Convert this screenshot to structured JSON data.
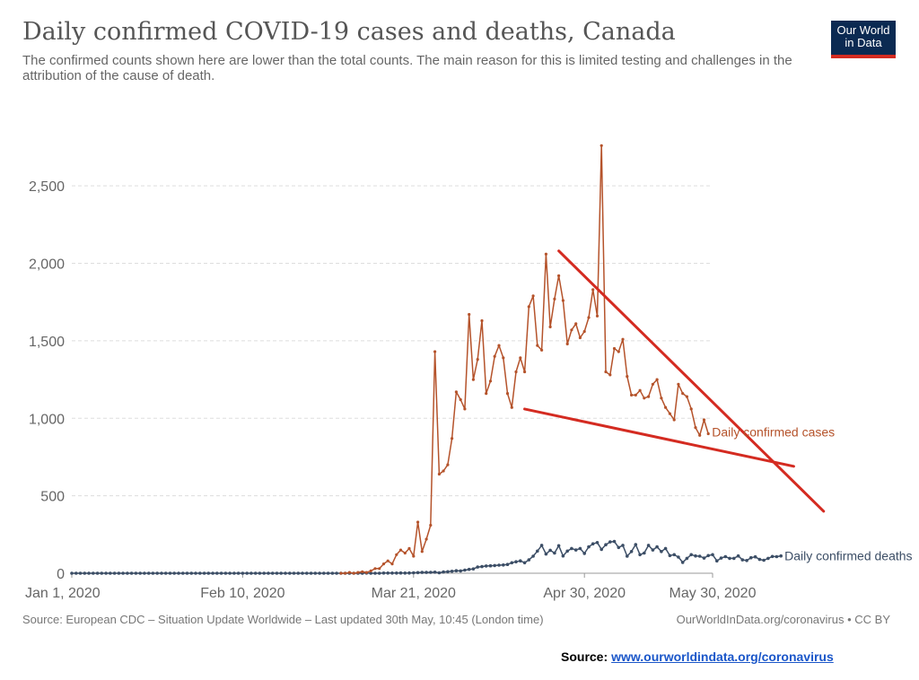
{
  "header": {
    "title": "Daily confirmed COVID-19 cases and deaths, Canada",
    "subtitle": "The confirmed counts shown here are lower than the total counts. The main reason for this is limited testing and challenges in the attribution of the cause of death.",
    "logo_line1": "Our World",
    "logo_line2": "in Data"
  },
  "footer": {
    "source_text": "Source: European CDC – Situation Update Worldwide – Last updated 30th May, 10:45 (London time)",
    "credit_text": "OurWorldInData.org/coronavirus • CC BY",
    "bottom_label": "Source:",
    "bottom_link": "www.ourworldindata.org/coronavirus"
  },
  "colors": {
    "cases": "#b5532b",
    "deaths": "#3c4e66",
    "trendlines": "#d42b21",
    "grid": "#dddddd",
    "axis_text": "#666666"
  },
  "chart_data": {
    "type": "line",
    "title": "Daily confirmed COVID-19 cases and deaths, Canada",
    "x_range": [
      "2020-01-01",
      "2020-05-30"
    ],
    "x_ticks": [
      {
        "date": "2020-01-01",
        "label": "Jan 1, 2020"
      },
      {
        "date": "2020-02-10",
        "label": "Feb 10, 2020"
      },
      {
        "date": "2020-03-21",
        "label": "Mar 21, 2020"
      },
      {
        "date": "2020-04-30",
        "label": "Apr 30, 2020"
      },
      {
        "date": "2020-05-30",
        "label": "May 30, 2020"
      }
    ],
    "y_range": [
      0,
      2750
    ],
    "y_ticks": [
      {
        "value": 0,
        "label": "0"
      },
      {
        "value": 500,
        "label": "500"
      },
      {
        "value": 1000,
        "label": "1,000"
      },
      {
        "value": 1500,
        "label": "1,500"
      },
      {
        "value": 2000,
        "label": "2,000"
      },
      {
        "value": 2500,
        "label": "2,500"
      }
    ],
    "grid": true,
    "series": [
      {
        "name": "Daily confirmed cases",
        "color": "#b5532b",
        "start_date": "2020-03-04",
        "values": [
          0,
          0,
          5,
          0,
          5,
          10,
          5,
          15,
          30,
          30,
          60,
          80,
          60,
          120,
          150,
          130,
          160,
          110,
          330,
          140,
          220,
          310,
          1430,
          640,
          660,
          700,
          870,
          1170,
          1120,
          1060,
          1670,
          1250,
          1380,
          1630,
          1160,
          1240,
          1400,
          1470,
          1390,
          1160,
          1070,
          1300,
          1390,
          1300,
          1720,
          1790,
          1470,
          1440,
          2060,
          1590,
          1770,
          1920,
          1760,
          1480,
          1570,
          1610,
          1520,
          1560,
          1650,
          1830,
          1660,
          2760,
          1300,
          1280,
          1450,
          1430,
          1510,
          1270,
          1150,
          1150,
          1180,
          1130,
          1140,
          1220,
          1250,
          1130,
          1070,
          1030,
          990,
          1220,
          1160,
          1140,
          1060,
          940,
          890,
          990,
          900
        ]
      },
      {
        "name": "Daily confirmed deaths",
        "color": "#3c4e66",
        "start_date": "2020-01-01",
        "values": [
          0,
          0,
          0,
          0,
          0,
          0,
          0,
          0,
          0,
          0,
          0,
          0,
          0,
          0,
          0,
          0,
          0,
          0,
          0,
          0,
          0,
          0,
          0,
          0,
          0,
          0,
          0,
          0,
          0,
          0,
          0,
          0,
          0,
          0,
          0,
          0,
          0,
          0,
          0,
          0,
          0,
          0,
          0,
          0,
          0,
          0,
          0,
          0,
          0,
          0,
          0,
          0,
          0,
          0,
          0,
          0,
          0,
          0,
          0,
          0,
          0,
          0,
          0,
          0,
          0,
          0,
          0,
          0,
          0,
          1,
          0,
          0,
          0,
          1,
          1,
          1,
          1,
          2,
          1,
          2,
          3,
          4,
          5,
          5,
          6,
          7,
          3,
          8,
          10,
          13,
          16,
          15,
          20,
          25,
          28,
          40,
          43,
          47,
          48,
          50,
          52,
          53,
          57,
          68,
          74,
          80,
          68,
          86,
          110,
          143,
          180,
          124,
          148,
          130,
          178,
          112,
          143,
          160,
          150,
          160,
          128,
          170,
          190,
          198,
          154,
          184,
          202,
          205,
          166,
          180,
          110,
          140,
          185,
          120,
          130,
          180,
          150,
          170,
          140,
          160,
          114,
          120,
          104,
          70,
          96,
          120,
          112,
          110,
          98,
          114,
          120,
          80,
          98,
          107,
          96,
          96,
          112,
          86,
          82,
          100,
          106,
          89,
          84,
          96,
          108,
          107,
          112
        ]
      }
    ],
    "trendlines": {
      "upper": [
        {
          "date": "2020-04-24",
          "value": 2080
        },
        {
          "date": "2020-06-25",
          "value": 400
        }
      ],
      "lower": [
        {
          "date": "2020-04-16",
          "value": 1060
        },
        {
          "date": "2020-06-18",
          "value": 690
        }
      ]
    }
  }
}
